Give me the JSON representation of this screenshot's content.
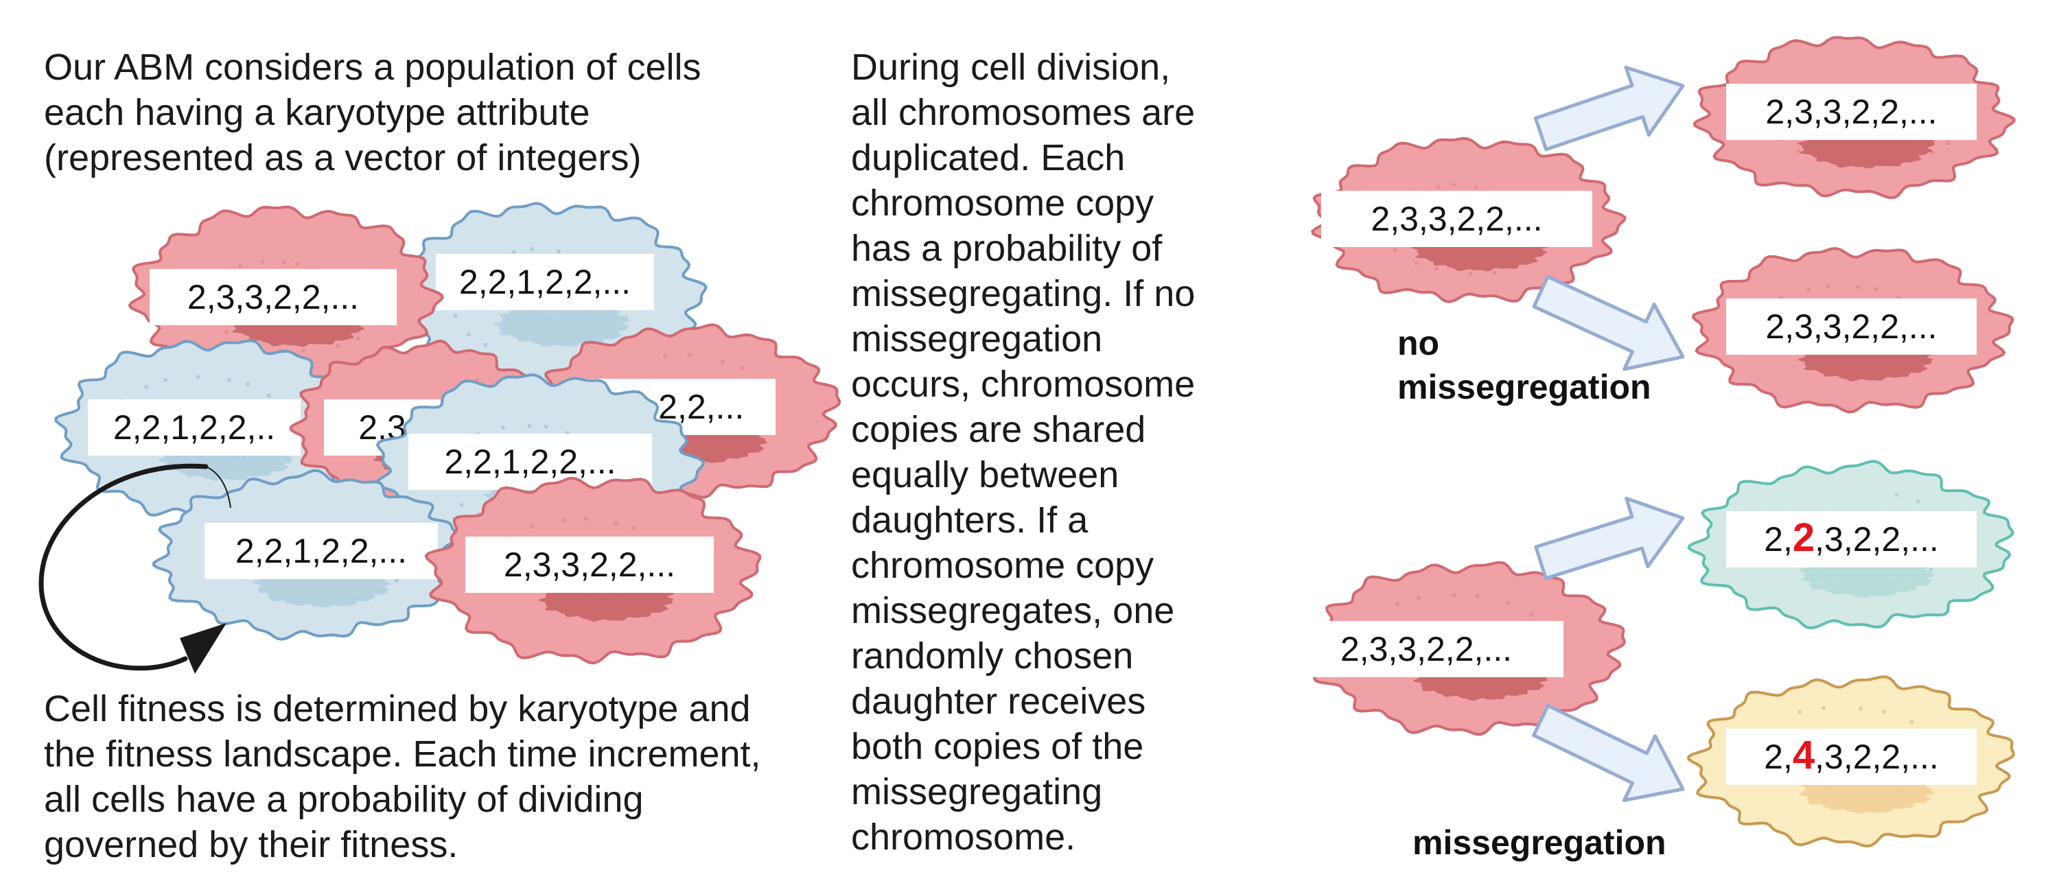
{
  "texts": {
    "intro": [
      "Our ABM considers a population of cells",
      "each having a karyotype attribute",
      "(represented as a vector of integers)"
    ],
    "fitness": [
      "Cell fitness is determined by karyotype and",
      "the fitness landscape. Each time increment,",
      "all cells have a probability of dividing",
      "governed by their fitness."
    ],
    "division": [
      "During cell division,",
      "all chromosomes are",
      "duplicated.  Each",
      "chromosome copy",
      "has a probability of",
      "missegregating. If no",
      "missegregation",
      "occurs, chromosome",
      "copies are shared",
      "equally between",
      "daughters. If a",
      "chromosome copy",
      "missegregates, one",
      "randomly chosen",
      "daughter receives",
      "both copies of the",
      "missegregating",
      "chromosome."
    ],
    "no_missegregation_label": [
      "no",
      "missegregation"
    ],
    "missegregation_label": "missegregation"
  },
  "karyotypes": {
    "red": "2,3,3,2,2,...",
    "blue": "2,2,1,2,2,...",
    "blue_partial": "2,2,1,2,2,..",
    "red_partial": "2,3",
    "red_partial2": "2,3,2,2,...",
    "daughter_gain_prefix": "2,",
    "daughter_gain_digit": "2",
    "daughter_loss_digit": "4",
    "daughter_suffix": ",3,2,2,..."
  },
  "colors": {
    "red_cell": "#f0a1a6",
    "red_edge": "#cf6a72",
    "red_nucleus": "#c86468",
    "blue_cell": "#d3e3ec",
    "blue_edge": "#6f9ec5",
    "blue_nucleus": "#b3cfe0",
    "teal_cell": "#d2e9e6",
    "teal_edge": "#5fbfae",
    "yellow_cell": "#fbecc2",
    "yellow_edge": "#c9994f",
    "arrow_fill": "#e8f0fb",
    "arrow_edge": "#97acd2",
    "highlight": "#e8141c"
  }
}
